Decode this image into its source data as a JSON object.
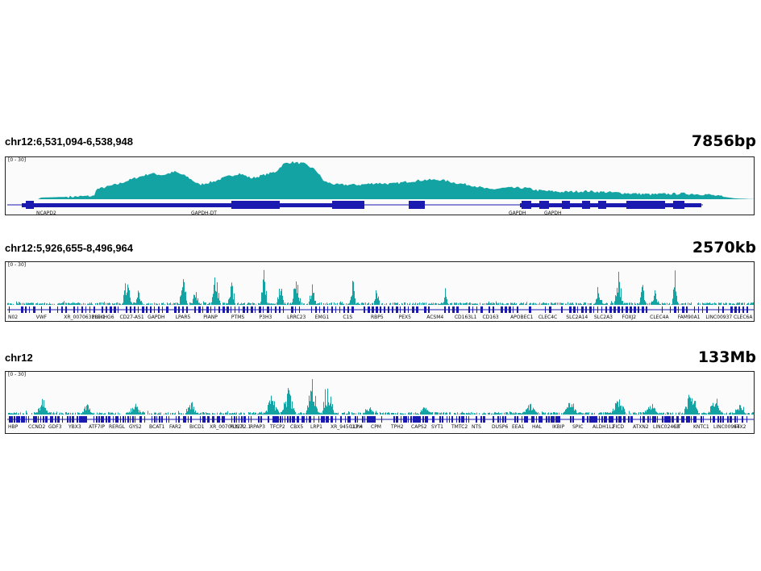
{
  "colors": {
    "coverage": "#14a3a3",
    "gene": "#1a1ab0",
    "frame": "#222222"
  },
  "panels": [
    {
      "locus": "chr12:6,531,094-6,538,948",
      "span": "7856bp",
      "range_label": "[0 - 30]",
      "genes": [
        "NCAPD2",
        "GAPDH-DT",
        "GAPDH",
        "GAPDH"
      ]
    },
    {
      "locus": "chr12:5,926,655-8,496,964",
      "span": "2570kb",
      "range_label": "[0 - 30]",
      "genes": [
        "N02",
        "VWF",
        "XR_007063189.1",
        "PLEKHG6",
        "CD27-AS1",
        "GAPDH",
        "LPAR5",
        "PIANP",
        "PTMS",
        "P3H3",
        "LRRC23",
        "EMG1",
        "C1S",
        "RBP5",
        "PEX5",
        "ACSM4",
        "CD163L1",
        "CD163",
        "APOBEC1",
        "CLEC4C",
        "SLC2A14",
        "SLC2A3",
        "FOXJ2",
        "CLEC4A",
        "FAM90A1",
        "LINC00937",
        "CLEC6A"
      ]
    },
    {
      "locus": "chr12",
      "span": "133Mb",
      "range_label": "[0 - 30]",
      "genes": [
        "HBP",
        "CCND2",
        "GDF3",
        "YBX3",
        "ATF7IP",
        "RERGL",
        "GYS2",
        "BCAT1",
        "FAR2",
        "BICD1",
        "XR_007063272.1",
        "PUS7L",
        "RPAP3",
        "TFCP2",
        "CBX5",
        "LRP1",
        "XR_945013.4",
        "LLPH",
        "CPM",
        "TPH2",
        "CAPS2",
        "SYT1",
        "TMTC2",
        "NTS",
        "DUSP6",
        "EEA1",
        "HAL",
        "IKBIP",
        "SPIC",
        "ALDH1L2",
        "FICD",
        "ATXN2",
        "LINC02463",
        "CIT",
        "KNTC1",
        "LINC00944",
        "STX2"
      ]
    }
  ]
}
